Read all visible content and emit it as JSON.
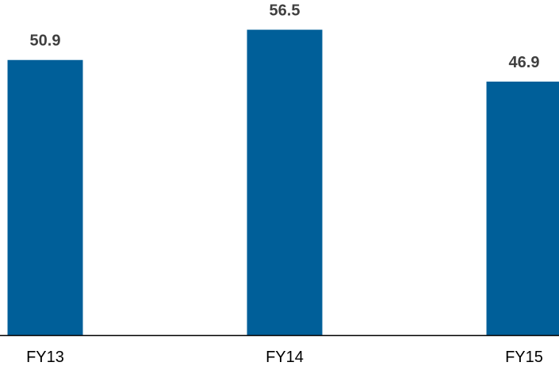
{
  "chart_data": {
    "type": "bar",
    "title": "",
    "xlabel": "",
    "ylabel": "",
    "categories": [
      "FY13",
      "FY14",
      "FY15"
    ],
    "values": [
      50.9,
      56.5,
      46.9
    ],
    "value_labels": [
      "50.9",
      "56.5",
      "46.9"
    ],
    "ylim": [
      0,
      62
    ],
    "grid": false,
    "legend": "none",
    "bar_color": "#005f99",
    "axis_color": "#000000",
    "label_color": "#404040"
  }
}
